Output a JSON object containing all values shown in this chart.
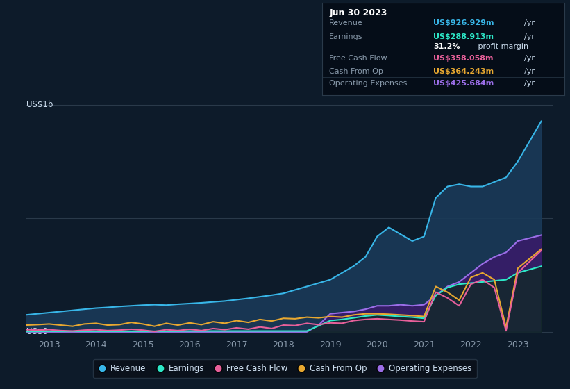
{
  "bg_color": "#0d1b2a",
  "title_box_bg": "#050d18",
  "title_box_border": "#2a3a4a",
  "title_box_date": "Jun 30 2023",
  "title_box_date_color": "#ffffff",
  "title_rows": [
    {
      "label": "Revenue",
      "value": "US$926.929m",
      "unit": "/yr",
      "value_color": "#38b6e8"
    },
    {
      "label": "Earnings",
      "value": "US$288.913m",
      "unit": "/yr",
      "value_color": "#2de8c8"
    },
    {
      "label": "",
      "value": "31.2%",
      "unit": " profit margin",
      "value_color": "#ffffff"
    },
    {
      "label": "Free Cash Flow",
      "value": "US$358.058m",
      "unit": "/yr",
      "value_color": "#e8609a"
    },
    {
      "label": "Cash From Op",
      "value": "US$364.243m",
      "unit": "/yr",
      "value_color": "#e8a830"
    },
    {
      "label": "Operating Expenses",
      "value": "US$425.684m",
      "unit": "/yr",
      "value_color": "#9b6ee8"
    }
  ],
  "ylabel_top": "US$1b",
  "ylabel_bottom": "US$0",
  "xlim": [
    2012.5,
    2023.75
  ],
  "ylim": [
    -0.02,
    1.05
  ],
  "xtick_labels": [
    "2013",
    "2014",
    "2015",
    "2016",
    "2017",
    "2018",
    "2019",
    "2020",
    "2021",
    "2022",
    "2023"
  ],
  "xtick_positions": [
    2013,
    2014,
    2015,
    2016,
    2017,
    2018,
    2019,
    2020,
    2021,
    2022,
    2023
  ],
  "gridline_y": [
    0.5
  ],
  "legend_items": [
    {
      "label": "Revenue",
      "color": "#38b6e8"
    },
    {
      "label": "Earnings",
      "color": "#2de8c8"
    },
    {
      "label": "Free Cash Flow",
      "color": "#e8609a"
    },
    {
      "label": "Cash From Op",
      "color": "#e8a830"
    },
    {
      "label": "Operating Expenses",
      "color": "#9b6ee8"
    }
  ],
  "revenue_x": [
    2012.5,
    2012.75,
    2013.0,
    2013.25,
    2013.5,
    2013.75,
    2014.0,
    2014.25,
    2014.5,
    2014.75,
    2015.0,
    2015.25,
    2015.5,
    2015.75,
    2016.0,
    2016.25,
    2016.5,
    2016.75,
    2017.0,
    2017.25,
    2017.5,
    2017.75,
    2018.0,
    2018.25,
    2018.5,
    2018.75,
    2019.0,
    2019.25,
    2019.5,
    2019.75,
    2020.0,
    2020.25,
    2020.5,
    2020.75,
    2021.0,
    2021.25,
    2021.5,
    2021.75,
    2022.0,
    2022.25,
    2022.5,
    2022.75,
    2023.0,
    2023.5
  ],
  "revenue_y": [
    0.075,
    0.08,
    0.085,
    0.09,
    0.095,
    0.1,
    0.105,
    0.108,
    0.112,
    0.115,
    0.118,
    0.12,
    0.118,
    0.122,
    0.125,
    0.128,
    0.132,
    0.136,
    0.142,
    0.148,
    0.155,
    0.162,
    0.17,
    0.185,
    0.2,
    0.215,
    0.23,
    0.26,
    0.29,
    0.33,
    0.42,
    0.46,
    0.43,
    0.4,
    0.42,
    0.59,
    0.64,
    0.65,
    0.64,
    0.64,
    0.66,
    0.68,
    0.75,
    0.927
  ],
  "revenue_color": "#38b6e8",
  "revenue_fill": "#1a3a58",
  "earnings_x": [
    2012.5,
    2013.0,
    2013.5,
    2014.0,
    2014.5,
    2015.0,
    2015.5,
    2016.0,
    2016.5,
    2017.0,
    2017.5,
    2018.0,
    2018.5,
    2019.0,
    2019.25,
    2019.5,
    2019.75,
    2020.0,
    2020.25,
    2020.5,
    2020.75,
    2021.0,
    2021.25,
    2021.5,
    2021.75,
    2022.0,
    2022.25,
    2022.5,
    2022.75,
    2023.0,
    2023.5
  ],
  "earnings_y": [
    0.002,
    0.003,
    0.003,
    0.003,
    0.003,
    0.003,
    0.003,
    0.004,
    0.004,
    0.004,
    0.004,
    0.004,
    0.004,
    0.05,
    0.055,
    0.062,
    0.07,
    0.075,
    0.072,
    0.068,
    0.065,
    0.06,
    0.16,
    0.195,
    0.21,
    0.215,
    0.22,
    0.225,
    0.23,
    0.26,
    0.289
  ],
  "earnings_color": "#2de8c8",
  "earnings_fill": "#0d2a20",
  "operating_expenses_x": [
    2012.5,
    2013.0,
    2013.5,
    2014.0,
    2014.5,
    2015.0,
    2015.5,
    2016.0,
    2016.5,
    2017.0,
    2017.5,
    2018.0,
    2018.5,
    2018.75,
    2019.0,
    2019.25,
    2019.5,
    2019.75,
    2020.0,
    2020.25,
    2020.5,
    2020.75,
    2021.0,
    2021.25,
    2021.5,
    2021.75,
    2022.0,
    2022.25,
    2022.5,
    2022.75,
    2023.0,
    2023.5
  ],
  "operating_expenses_y": [
    0.0,
    0.0,
    0.0,
    0.0,
    0.0,
    0.0,
    0.0,
    0.0,
    0.0,
    0.0,
    0.0,
    0.0,
    0.0,
    0.03,
    0.08,
    0.085,
    0.09,
    0.1,
    0.115,
    0.115,
    0.12,
    0.115,
    0.12,
    0.16,
    0.2,
    0.22,
    0.26,
    0.3,
    0.33,
    0.35,
    0.4,
    0.426
  ],
  "operating_expenses_color": "#9b6ee8",
  "operating_expenses_fill": "#3a1a6a",
  "cash_from_op_x": [
    2012.5,
    2012.75,
    2013.0,
    2013.25,
    2013.5,
    2013.75,
    2014.0,
    2014.25,
    2014.5,
    2014.75,
    2015.0,
    2015.25,
    2015.5,
    2015.75,
    2016.0,
    2016.25,
    2016.5,
    2016.75,
    2017.0,
    2017.25,
    2017.5,
    2017.75,
    2018.0,
    2018.25,
    2018.5,
    2018.75,
    2019.0,
    2019.25,
    2019.5,
    2019.75,
    2020.0,
    2020.25,
    2020.5,
    2020.75,
    2021.0,
    2021.25,
    2021.5,
    2021.75,
    2022.0,
    2022.25,
    2022.5,
    2022.75,
    2023.0,
    2023.5
  ],
  "cash_from_op_y": [
    0.03,
    0.032,
    0.035,
    0.03,
    0.025,
    0.035,
    0.038,
    0.03,
    0.032,
    0.042,
    0.035,
    0.025,
    0.038,
    0.03,
    0.04,
    0.032,
    0.045,
    0.038,
    0.05,
    0.042,
    0.055,
    0.048,
    0.06,
    0.058,
    0.065,
    0.062,
    0.068,
    0.065,
    0.075,
    0.08,
    0.08,
    0.078,
    0.075,
    0.072,
    0.068,
    0.2,
    0.175,
    0.14,
    0.24,
    0.26,
    0.23,
    0.02,
    0.28,
    0.364
  ],
  "cash_from_op_color": "#e8a830",
  "free_cash_flow_x": [
    2012.5,
    2012.75,
    2013.0,
    2013.25,
    2013.5,
    2013.75,
    2014.0,
    2014.25,
    2014.5,
    2014.75,
    2015.0,
    2015.25,
    2015.5,
    2015.75,
    2016.0,
    2016.25,
    2016.5,
    2016.75,
    2017.0,
    2017.25,
    2017.5,
    2017.75,
    2018.0,
    2018.25,
    2018.5,
    2018.75,
    2019.0,
    2019.25,
    2019.5,
    2019.75,
    2020.0,
    2020.25,
    2020.5,
    2020.75,
    2021.0,
    2021.25,
    2021.5,
    2021.75,
    2022.0,
    2022.25,
    2022.5,
    2022.75,
    2023.0,
    2023.5
  ],
  "free_cash_flow_y": [
    0.01,
    0.008,
    0.01,
    0.006,
    0.004,
    0.008,
    0.01,
    0.006,
    0.008,
    0.012,
    0.008,
    0.002,
    0.01,
    0.006,
    0.012,
    0.006,
    0.015,
    0.01,
    0.018,
    0.012,
    0.022,
    0.015,
    0.03,
    0.028,
    0.038,
    0.032,
    0.04,
    0.038,
    0.05,
    0.055,
    0.058,
    0.055,
    0.052,
    0.048,
    0.045,
    0.175,
    0.15,
    0.115,
    0.21,
    0.23,
    0.195,
    0.005,
    0.26,
    0.358
  ],
  "free_cash_flow_color": "#e8609a"
}
